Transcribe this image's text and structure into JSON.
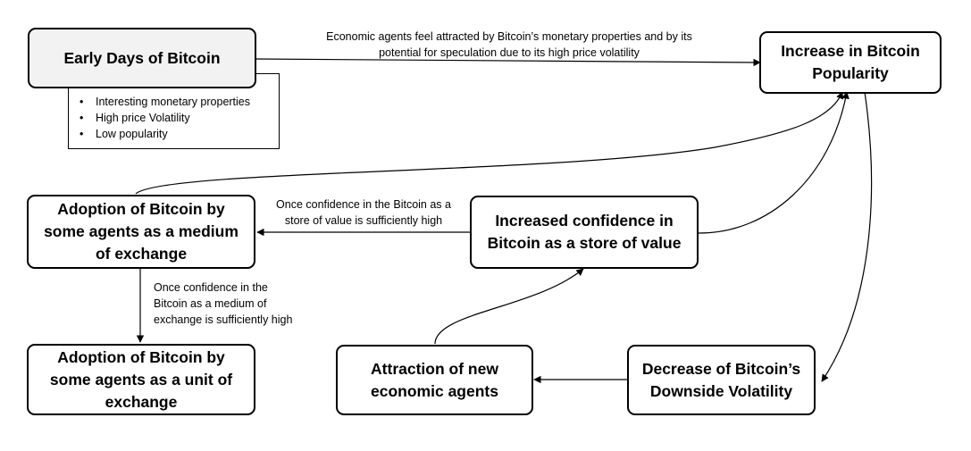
{
  "nodes": {
    "early_days": "Early Days of Bitcoin",
    "popularity": "Increase in Bitcoin\nPopularity",
    "medium_of_exchange": "Adoption of Bitcoin by\nsome agents as a medium\nof exchange",
    "store_of_value": "Increased confidence in\nBitcoin as a store of value",
    "unit_of_exchange": "Adoption of Bitcoin by\nsome agents as a unit of\nexchange",
    "new_agents": "Attraction of new\neconomic agents",
    "downside_volatility": "Decrease of Bitcoin’s\nDownside Volatility"
  },
  "early_days_notes": [
    "Interesting monetary properties",
    "High price Volatility",
    "Low popularity"
  ],
  "edge_labels": {
    "early_to_popularity": "Economic agents feel attracted by Bitcoin’s monetary properties and by its\npotential for speculation due to its high price volatility",
    "store_to_medium": "Once confidence in the Bitcoin as a\nstore of value is sufficiently high",
    "medium_to_unit": "Once confidence in the\nBitcoin as a medium of\nexchange is sufficiently high"
  }
}
